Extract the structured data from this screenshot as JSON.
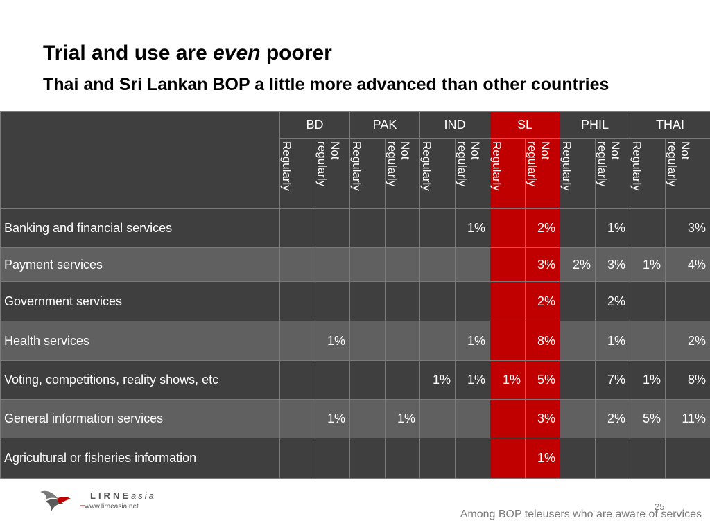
{
  "title": {
    "part1": "Trial and use are ",
    "emphasis": "even",
    "part2": " poorer"
  },
  "subtitle": "Thai and Sri Lankan BOP a little more advanced than other countries",
  "table": {
    "countries": [
      "BD",
      "PAK",
      "IND",
      "SL",
      "PHIL",
      "THAI"
    ],
    "subheaders": [
      "Regularly",
      "Not\nregularly"
    ],
    "rows": [
      {
        "label": "Banking and financial services",
        "values": [
          "",
          "",
          "",
          "",
          "",
          "1%",
          "",
          "2%",
          "",
          "1%",
          "",
          "3%"
        ]
      },
      {
        "label": "Payment services",
        "values": [
          "",
          "",
          "",
          "",
          "",
          "",
          "",
          "3%",
          "2%",
          "3%",
          "1%",
          "4%"
        ]
      },
      {
        "label": "Government services",
        "values": [
          "",
          "",
          "",
          "",
          "",
          "",
          "",
          "2%",
          "",
          "2%",
          "",
          ""
        ]
      },
      {
        "label": "Health services",
        "values": [
          "",
          "1%",
          "",
          "",
          "",
          "1%",
          "",
          "8%",
          "",
          "1%",
          "",
          "2%"
        ]
      },
      {
        "label": "Voting, competitions, reality shows, etc",
        "values": [
          "",
          "",
          "",
          "",
          "1%",
          "1%",
          "1%",
          "5%",
          "",
          "7%",
          "1%",
          "8%"
        ]
      },
      {
        "label": "General information services",
        "values": [
          "",
          "1%",
          "",
          "1%",
          "",
          "",
          "",
          "3%",
          "",
          "2%",
          "5%",
          "11%"
        ]
      },
      {
        "label": "Agricultural or fisheries information",
        "values": [
          "",
          "",
          "",
          "",
          "",
          "",
          "",
          "1%",
          "",
          "",
          "",
          ""
        ]
      }
    ],
    "highlight_color": "#c00000",
    "dark_row_color": "#3f3f3f",
    "light_row_color": "#606060"
  },
  "logo": {
    "name": "LIRNE",
    "suffix": "asia",
    "url": "www.lirneasia.net"
  },
  "page_number": "25",
  "footnote": "Among BOP teleusers who are aware of services"
}
